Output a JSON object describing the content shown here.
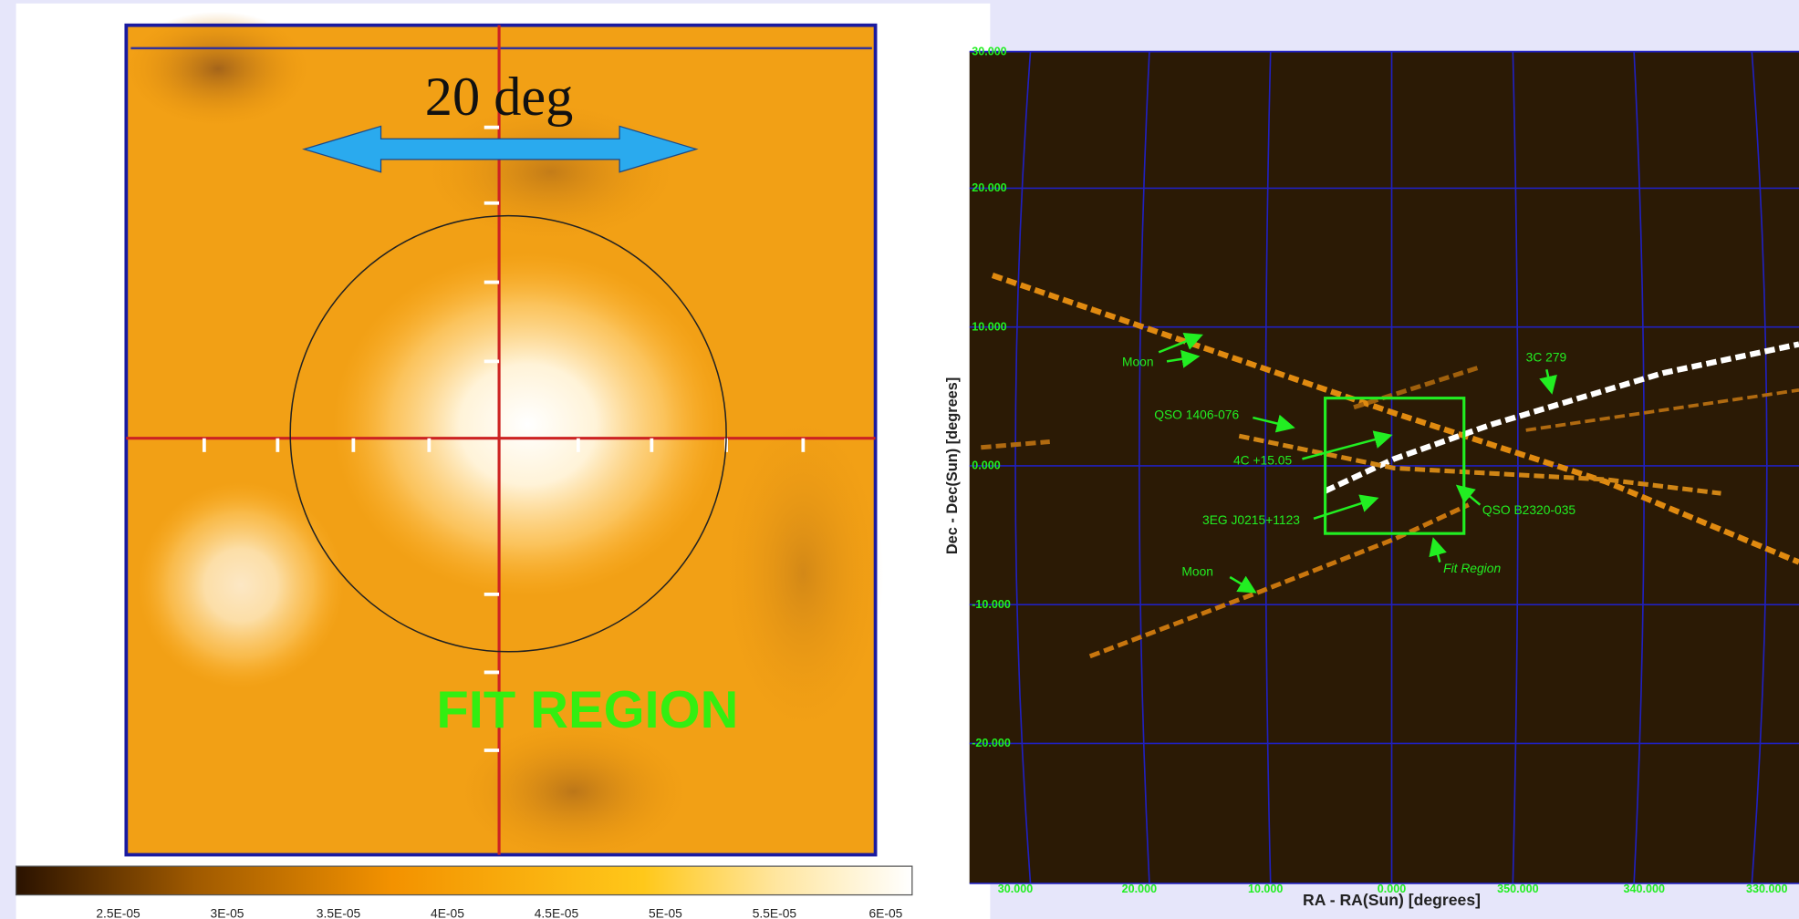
{
  "left_panel": {
    "scale_label": "20 deg",
    "region_label": "FIT REGION",
    "colorbar_labels": [
      "2.5E-05",
      "3E-05",
      "3.5E-05",
      "4E-05",
      "4.5E-05",
      "5E-05",
      "5.5E-05",
      "6E-05"
    ]
  },
  "right_panel": {
    "x_axis_label": "RA - RA(Sun) [degrees]",
    "y_axis_label": "Dec - Dec(Sun) [degrees]",
    "yticks": [
      "30.000",
      "20.000",
      "10.000",
      "0.000",
      "-10.000",
      "-20.000"
    ],
    "xticks": [
      "30.000",
      "20.000",
      "10.000",
      "0.000",
      "350.000",
      "340.000",
      "330.000"
    ],
    "annotations": [
      "Moon",
      "QSO 1406-076",
      "4C +15.05",
      "3EG J0215+1123",
      "Moon",
      "3C 279",
      "QSO B2320-035",
      "Fit Region"
    ]
  }
}
